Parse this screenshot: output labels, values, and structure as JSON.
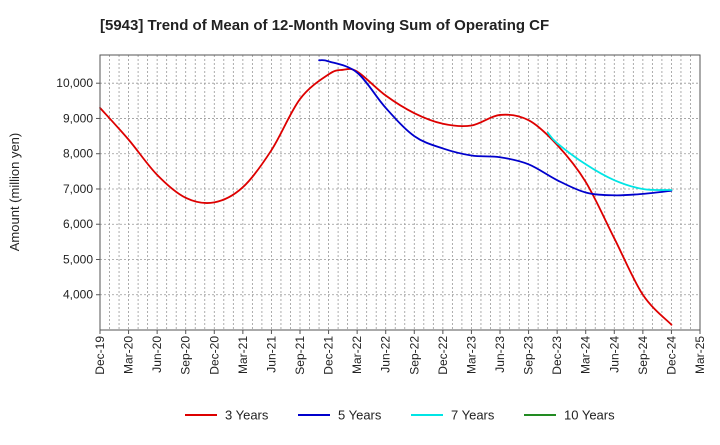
{
  "chart_data": {
    "type": "line",
    "title": "[5943]  Trend of Mean of 12-Month Moving Sum of Operating CF",
    "xlabel": "",
    "ylabel": "Amount (million yen)",
    "ylim": [
      3000,
      10800
    ],
    "yticks": [
      4000,
      5000,
      6000,
      7000,
      8000,
      9000,
      10000
    ],
    "ytick_labels": [
      "4,000",
      "5,000",
      "6,000",
      "7,000",
      "8,000",
      "9,000",
      "10,000"
    ],
    "x_categories": [
      "Dec-19",
      "Mar-20",
      "Jun-20",
      "Sep-20",
      "Dec-20",
      "Mar-21",
      "Jun-21",
      "Sep-21",
      "Dec-21",
      "Mar-22",
      "Jun-22",
      "Sep-22",
      "Dec-22",
      "Mar-23",
      "Jun-23",
      "Sep-23",
      "Dec-23",
      "Mar-24",
      "Jun-24",
      "Sep-24",
      "Dec-24",
      "Mar-25"
    ],
    "grid": true,
    "legend_position": "bottom",
    "series": [
      {
        "name": "3 Years",
        "color": "#dd0000",
        "points": [
          [
            0,
            9300
          ],
          [
            1,
            8400
          ],
          [
            2,
            7400
          ],
          [
            3,
            6750
          ],
          [
            4,
            6620
          ],
          [
            5,
            7050
          ],
          [
            6,
            8100
          ],
          [
            7,
            9550
          ],
          [
            8,
            10250
          ],
          [
            8.5,
            10380
          ],
          [
            9,
            10330
          ],
          [
            10,
            9650
          ],
          [
            11,
            9150
          ],
          [
            12,
            8850
          ],
          [
            13,
            8800
          ],
          [
            14,
            9100
          ],
          [
            15,
            8950
          ],
          [
            16,
            8250
          ],
          [
            17,
            7200
          ],
          [
            18,
            5600
          ],
          [
            19,
            4000
          ],
          [
            20,
            3150
          ]
        ]
      },
      {
        "name": "5 Years",
        "color": "#0000cc",
        "points": [
          [
            7.67,
            10650
          ],
          [
            8,
            10620
          ],
          [
            9,
            10300
          ],
          [
            10,
            9300
          ],
          [
            11,
            8500
          ],
          [
            12,
            8150
          ],
          [
            13,
            7950
          ],
          [
            14,
            7900
          ],
          [
            15,
            7700
          ],
          [
            16,
            7250
          ],
          [
            17,
            6900
          ],
          [
            18,
            6820
          ],
          [
            19,
            6860
          ],
          [
            20,
            6950
          ]
        ]
      },
      {
        "name": "7 Years",
        "color": "#00e5e5",
        "points": [
          [
            15.67,
            8600
          ],
          [
            16,
            8300
          ],
          [
            17,
            7700
          ],
          [
            18,
            7250
          ],
          [
            19,
            7000
          ],
          [
            20,
            6970
          ]
        ]
      },
      {
        "name": "10 Years",
        "color": "#228b22",
        "points": []
      }
    ]
  }
}
